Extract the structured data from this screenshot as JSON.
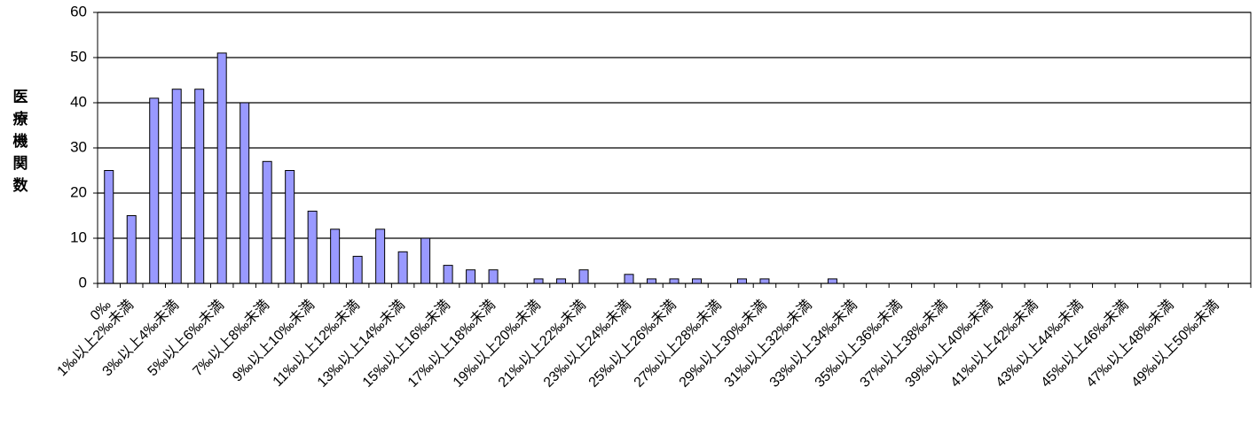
{
  "chart_data": {
    "type": "bar",
    "y_label": "医療機関数",
    "categories": [
      "0‰",
      "1‰以上2‰未満",
      null,
      "3‰以上4‰未満",
      null,
      "5‰以上6‰未満",
      null,
      "7‰以上8‰未満",
      null,
      "9‰以上10‰未満",
      null,
      "11‰以上12‰未満",
      null,
      "13‰以上14‰未満",
      null,
      "15‰以上16‰未満",
      null,
      "17‰以上18‰未満",
      null,
      "19‰以上20‰未満",
      null,
      "21‰以上22‰未満",
      null,
      "23‰以上24‰未満",
      null,
      "25‰以上26‰未満",
      null,
      "27‰以上28‰未満",
      null,
      "29‰以上30‰未満",
      null,
      "31‰以上32‰未満",
      null,
      "33‰以上34‰未満",
      null,
      "35‰以上36‰未満",
      null,
      "37‰以上38‰未満",
      null,
      "39‰以上40‰未満",
      null,
      "41‰以上42‰未満",
      null,
      "43‰以上44‰未満",
      null,
      "45‰以上46‰未満",
      null,
      "47‰以上48‰未満",
      null,
      "49‰以上50‰未満",
      null
    ],
    "values": [
      25,
      15,
      41,
      43,
      43,
      51,
      40,
      27,
      25,
      16,
      12,
      6,
      12,
      7,
      10,
      4,
      3,
      3,
      0,
      1,
      1,
      3,
      0,
      2,
      1,
      1,
      1,
      0,
      1,
      1,
      0,
      0,
      1,
      0,
      0,
      0,
      0,
      0,
      0,
      0,
      0,
      0,
      0,
      0,
      0,
      0,
      0,
      0,
      0,
      0,
      0
    ],
    "color": "#9999ff",
    "ylim": [
      0,
      60
    ],
    "yticks": [
      0,
      10,
      20,
      30,
      40,
      50,
      60
    ],
    "grid": true
  }
}
